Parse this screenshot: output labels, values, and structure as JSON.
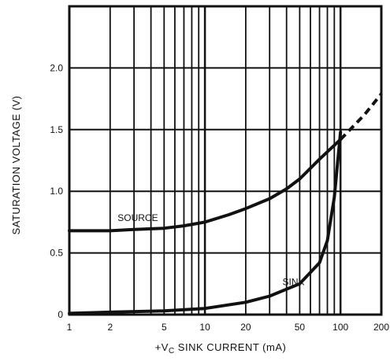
{
  "chart_data": {
    "type": "line",
    "title": "",
    "xlabel": "+VC SINK CURRENT (mA)",
    "xlabel_parts": {
      "prefix": "+V",
      "subscript": "C",
      "suffix": " SINK CURRENT (mA)"
    },
    "ylabel": "SATURATION VOLTAGE (V)",
    "x_scale": "log",
    "xlim": [
      1,
      200
    ],
    "ylim": [
      0,
      2.5
    ],
    "x_ticks": [
      1,
      2,
      5,
      10,
      20,
      50,
      100,
      200
    ],
    "x_tick_labels": [
      "1",
      "2",
      "5",
      "10",
      "20",
      "50",
      "100",
      "200"
    ],
    "y_ticks": [
      0,
      0.5,
      1.0,
      1.5,
      2.0
    ],
    "y_tick_labels": [
      "0",
      "0.5",
      "1.0",
      "1.5",
      "2.0"
    ],
    "grid": true,
    "series": [
      {
        "name": "SOURCE",
        "color": "#111111",
        "x": [
          1,
          2,
          3,
          5,
          7,
          10,
          15,
          20,
          30,
          40,
          50,
          70,
          100
        ],
        "y": [
          0.68,
          0.68,
          0.69,
          0.7,
          0.72,
          0.75,
          0.81,
          0.86,
          0.94,
          1.02,
          1.1,
          1.26,
          1.42
        ]
      },
      {
        "name": "",
        "color": "#111111",
        "dashed": true,
        "x": [
          100,
          150,
          200
        ],
        "y": [
          1.42,
          1.62,
          1.79
        ]
      },
      {
        "name": "SINK",
        "color": "#111111",
        "x": [
          1,
          2,
          5,
          10,
          20,
          30,
          50,
          70,
          80,
          90,
          100
        ],
        "y": [
          0.01,
          0.02,
          0.03,
          0.05,
          0.1,
          0.15,
          0.25,
          0.42,
          0.6,
          0.95,
          1.48
        ]
      }
    ],
    "annotations": [
      {
        "text": "SOURCE",
        "x": 3.2,
        "y": 0.76
      },
      {
        "text": "SINK",
        "x": 45,
        "y": 0.24
      }
    ]
  }
}
